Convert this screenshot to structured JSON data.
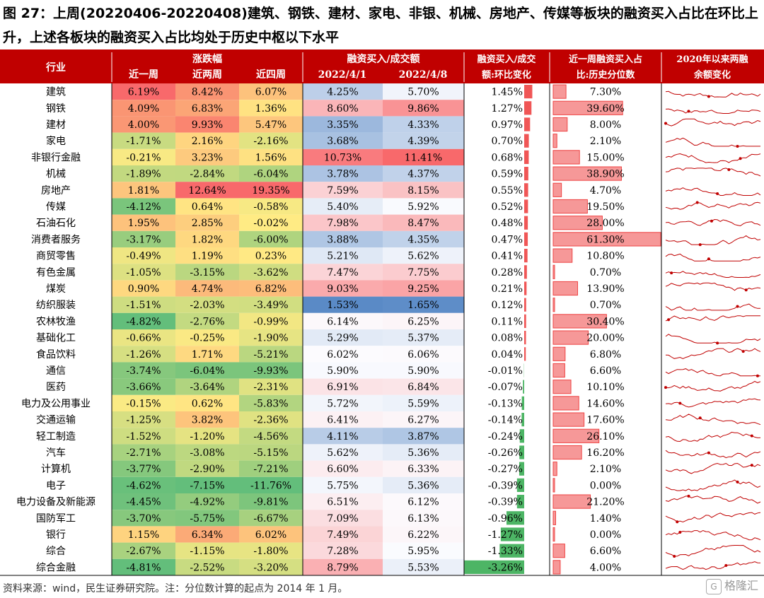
{
  "title": "图 27：上周(20220406-20220408)建筑、钢铁、建材、家电、非银、机械、房地产、传媒等板块的融资买入占比在环比上升，上述各板块的融资买入占比均处于历史中枢以下水平",
  "source": "资料来源：wind，民生证券研究院。注：分位数计算的起点为 2014 年 1 月。",
  "watermark": "格隆汇",
  "colors": {
    "header_bg": "#c00000",
    "header_text": "#ffffff",
    "bar_pos": "#ee4444",
    "bar_neg": "#2ea84a",
    "pct_bar": "#ee4444",
    "spark": "#c00000"
  },
  "chart_data": {
    "type": "table",
    "headers": {
      "industry": "行业",
      "change_group": "涨跌幅",
      "w1": "近一周",
      "w2": "近两周",
      "w4": "近四周",
      "ratio_group": "融资买入/成交额",
      "d1": "2022/4/1",
      "d2": "2022/4/8",
      "mom_line1": "融资买入/成交",
      "mom_line2": "额:环比变化",
      "pct_line1": "近一周融资买入占",
      "pct_line2": "比:历史分位数",
      "bal_line1": "2020年以来两融",
      "bal_line2": "余额变化"
    },
    "rows": [
      {
        "name": "建筑",
        "w1": "6.19%",
        "w2": "8.42%",
        "w4": "6.07%",
        "d1": "4.25%",
        "d2": "5.70%",
        "mom": "1.45%",
        "pct": "7.30%"
      },
      {
        "name": "钢铁",
        "w1": "4.09%",
        "w2": "6.83%",
        "w4": "1.36%",
        "d1": "8.60%",
        "d2": "9.86%",
        "mom": "1.27%",
        "pct": "39.60%"
      },
      {
        "name": "建材",
        "w1": "4.00%",
        "w2": "9.93%",
        "w4": "5.47%",
        "d1": "3.35%",
        "d2": "4.33%",
        "mom": "0.97%",
        "pct": "8.00%"
      },
      {
        "name": "家电",
        "w1": "-1.71%",
        "w2": "2.16%",
        "w4": "-2.16%",
        "d1": "3.68%",
        "d2": "4.39%",
        "mom": "0.70%",
        "pct": "2.10%"
      },
      {
        "name": "非银行金融",
        "w1": "-0.21%",
        "w2": "3.23%",
        "w4": "1.56%",
        "d1": "10.73%",
        "d2": "11.41%",
        "mom": "0.68%",
        "pct": "15.00%"
      },
      {
        "name": "机械",
        "w1": "-1.89%",
        "w2": "-2.84%",
        "w4": "-6.04%",
        "d1": "3.78%",
        "d2": "4.37%",
        "mom": "0.59%",
        "pct": "38.90%"
      },
      {
        "name": "房地产",
        "w1": "1.81%",
        "w2": "12.64%",
        "w4": "19.35%",
        "d1": "7.59%",
        "d2": "8.15%",
        "mom": "0.55%",
        "pct": "4.70%"
      },
      {
        "name": "传媒",
        "w1": "-4.12%",
        "w2": "0.64%",
        "w4": "-0.58%",
        "d1": "5.40%",
        "d2": "5.92%",
        "mom": "0.52%",
        "pct": "19.50%"
      },
      {
        "name": "石油石化",
        "w1": "1.95%",
        "w2": "2.85%",
        "w4": "-0.02%",
        "d1": "7.98%",
        "d2": "8.47%",
        "mom": "0.48%",
        "pct": "28.00%"
      },
      {
        "name": "消费者服务",
        "w1": "-3.17%",
        "w2": "1.82%",
        "w4": "-6.00%",
        "d1": "3.88%",
        "d2": "4.35%",
        "mom": "0.47%",
        "pct": "61.30%"
      },
      {
        "name": "商贸零售",
        "w1": "-0.49%",
        "w2": "1.19%",
        "w4": "0.23%",
        "d1": "5.21%",
        "d2": "5.62%",
        "mom": "0.41%",
        "pct": "10.80%"
      },
      {
        "name": "有色金属",
        "w1": "-1.05%",
        "w2": "-3.15%",
        "w4": "-3.62%",
        "d1": "7.47%",
        "d2": "7.75%",
        "mom": "0.28%",
        "pct": "0.70%"
      },
      {
        "name": "煤炭",
        "w1": "0.90%",
        "w2": "4.74%",
        "w4": "6.82%",
        "d1": "9.03%",
        "d2": "9.25%",
        "mom": "0.21%",
        "pct": "13.90%"
      },
      {
        "name": "纺织服装",
        "w1": "-1.51%",
        "w2": "-2.03%",
        "w4": "-3.49%",
        "d1": "1.53%",
        "d2": "1.65%",
        "mom": "0.12%",
        "pct": "0.70%"
      },
      {
        "name": "农林牧渔",
        "w1": "-4.82%",
        "w2": "-2.76%",
        "w4": "-0.99%",
        "d1": "6.14%",
        "d2": "6.25%",
        "mom": "0.11%",
        "pct": "30.40%"
      },
      {
        "name": "基础化工",
        "w1": "-0.66%",
        "w2": "-0.25%",
        "w4": "-1.90%",
        "d1": "5.29%",
        "d2": "5.37%",
        "mom": "0.08%",
        "pct": "20.00%"
      },
      {
        "name": "食品饮料",
        "w1": "-1.26%",
        "w2": "1.71%",
        "w4": "-5.21%",
        "d1": "6.02%",
        "d2": "6.06%",
        "mom": "0.04%",
        "pct": "6.80%"
      },
      {
        "name": "通信",
        "w1": "-3.74%",
        "w2": "-6.04%",
        "w4": "-9.93%",
        "d1": "5.90%",
        "d2": "5.90%",
        "mom": "-0.01%",
        "pct": "6.60%"
      },
      {
        "name": "医药",
        "w1": "-3.66%",
        "w2": "-3.64%",
        "w4": "-2.31%",
        "d1": "6.91%",
        "d2": "6.84%",
        "mom": "-0.07%",
        "pct": "10.10%"
      },
      {
        "name": "电力及公用事业",
        "w1": "-0.15%",
        "w2": "0.62%",
        "w4": "-5.83%",
        "d1": "5.72%",
        "d2": "5.59%",
        "mom": "-0.13%",
        "pct": "14.60%"
      },
      {
        "name": "交通运输",
        "w1": "-1.25%",
        "w2": "3.82%",
        "w4": "-2.36%",
        "d1": "6.41%",
        "d2": "6.27%",
        "mom": "-0.14%",
        "pct": "17.60%"
      },
      {
        "name": "轻工制造",
        "w1": "-1.52%",
        "w2": "-1.20%",
        "w4": "-4.56%",
        "d1": "4.11%",
        "d2": "3.87%",
        "mom": "-0.24%",
        "pct": "26.10%"
      },
      {
        "name": "汽车",
        "w1": "-2.71%",
        "w2": "-3.08%",
        "w4": "-5.15%",
        "d1": "5.62%",
        "d2": "5.36%",
        "mom": "-0.26%",
        "pct": "16.20%"
      },
      {
        "name": "计算机",
        "w1": "-3.77%",
        "w2": "-2.90%",
        "w4": "-7.21%",
        "d1": "6.60%",
        "d2": "6.33%",
        "mom": "-0.27%",
        "pct": "2.10%"
      },
      {
        "name": "电子",
        "w1": "-4.62%",
        "w2": "-7.15%",
        "w4": "-11.76%",
        "d1": "5.75%",
        "d2": "5.36%",
        "mom": "-0.39%",
        "pct": "0.00%"
      },
      {
        "name": "电力设备及新能源",
        "w1": "-4.45%",
        "w2": "-4.92%",
        "w4": "-9.81%",
        "d1": "6.51%",
        "d2": "6.12%",
        "mom": "-0.39%",
        "pct": "21.20%"
      },
      {
        "name": "国防军工",
        "w1": "-3.70%",
        "w2": "-5.75%",
        "w4": "-6.67%",
        "d1": "7.09%",
        "d2": "6.13%",
        "mom": "-0.96%",
        "pct": "1.40%"
      },
      {
        "name": "银行",
        "w1": "1.15%",
        "w2": "6.34%",
        "w4": "6.02%",
        "d1": "7.49%",
        "d2": "6.22%",
        "mom": "-1.27%",
        "pct": "0.00%"
      },
      {
        "name": "综合",
        "w1": "-2.67%",
        "w2": "-1.15%",
        "w4": "-1.80%",
        "d1": "7.28%",
        "d2": "5.95%",
        "mom": "-1.33%",
        "pct": "6.60%"
      },
      {
        "name": "综合金融",
        "w1": "-4.81%",
        "w2": "-2.52%",
        "w4": "-3.20%",
        "d1": "8.79%",
        "d2": "5.53%",
        "mom": "-3.26%",
        "pct": "4.00%"
      }
    ]
  }
}
